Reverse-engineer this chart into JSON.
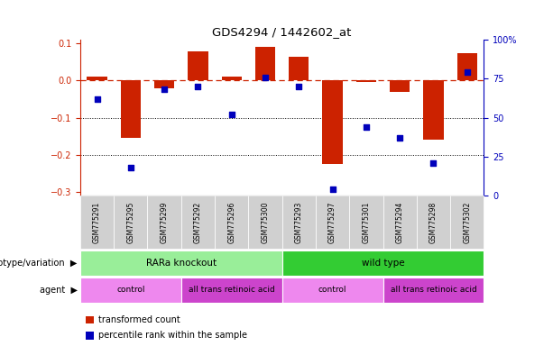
{
  "title": "GDS4294 / 1442602_at",
  "samples": [
    "GSM775291",
    "GSM775295",
    "GSM775299",
    "GSM775292",
    "GSM775296",
    "GSM775300",
    "GSM775293",
    "GSM775297",
    "GSM775301",
    "GSM775294",
    "GSM775298",
    "GSM775302"
  ],
  "bar_values": [
    0.01,
    -0.155,
    -0.022,
    0.08,
    0.01,
    0.09,
    0.065,
    -0.225,
    -0.005,
    -0.03,
    -0.16,
    0.075
  ],
  "dot_values_pct": [
    62,
    18,
    68,
    70,
    52,
    76,
    70,
    4,
    44,
    37,
    21,
    79
  ],
  "bar_color": "#cc2200",
  "dot_color": "#0000bb",
  "ylim_left": [
    -0.31,
    0.11
  ],
  "ylim_right": [
    0,
    100
  ],
  "yticks_left": [
    0.1,
    0.0,
    -0.1,
    -0.2,
    -0.3
  ],
  "yticks_right": [
    100,
    75,
    50,
    25,
    0
  ],
  "ytick_labels_right": [
    "100%",
    "75",
    "50",
    "25",
    "0"
  ],
  "hline_y": 0.0,
  "dotted_lines": [
    -0.1,
    -0.2
  ],
  "genotype_groups": [
    {
      "label": "RARa knockout",
      "start": 0,
      "end": 6,
      "color": "#99ee99"
    },
    {
      "label": "wild type",
      "start": 6,
      "end": 12,
      "color": "#33cc33"
    }
  ],
  "agent_groups": [
    {
      "label": "control",
      "start": 0,
      "end": 3,
      "color": "#ee88ee"
    },
    {
      "label": "all trans retinoic acid",
      "start": 3,
      "end": 6,
      "color": "#cc44cc"
    },
    {
      "label": "control",
      "start": 6,
      "end": 9,
      "color": "#ee88ee"
    },
    {
      "label": "all trans retinoic acid",
      "start": 9,
      "end": 12,
      "color": "#cc44cc"
    }
  ],
  "legend_items": [
    {
      "label": "transformed count",
      "color": "#cc2200"
    },
    {
      "label": "percentile rank within the sample",
      "color": "#0000bb"
    }
  ],
  "genotype_label": "genotype/variation",
  "agent_label": "agent",
  "bar_width": 0.6,
  "bg_color": "#ffffff",
  "tick_color_left": "#cc2200",
  "tick_color_right": "#0000bb",
  "xlabel_bg": "#cccccc",
  "label_fontsize": 7.5,
  "tick_fontsize": 7.0
}
